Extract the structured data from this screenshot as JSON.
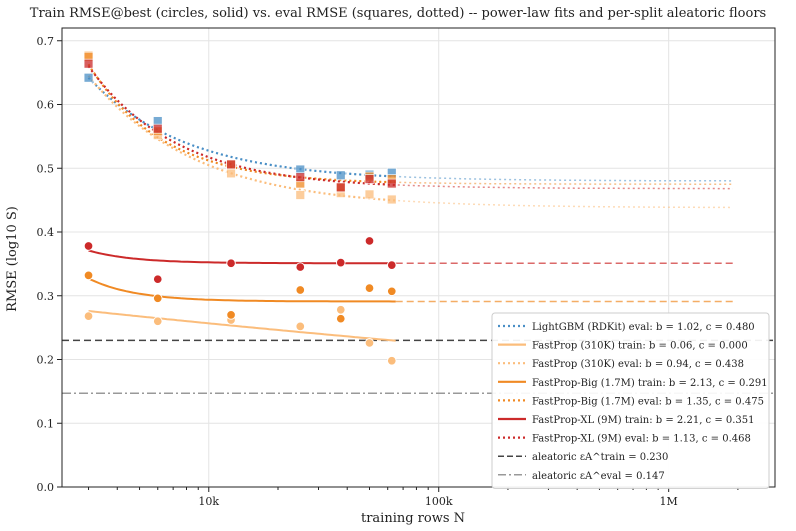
{
  "chart_data": {
    "type": "scatter",
    "title": "Train RMSE@best (circles, solid) vs. eval RMSE (squares, dotted)  --  power-law fits and per-split aleatoric floors",
    "xlabel": "training rows  N",
    "ylabel": "RMSE  (log10 S)",
    "xscale": "log",
    "xlim": [
      2300,
      2900000
    ],
    "ylim": [
      0,
      0.72
    ],
    "x_ticks": [
      10000,
      100000,
      1000000
    ],
    "x_tick_labels": [
      "10k",
      "100k",
      "1M"
    ],
    "y_ticks": [
      0.0,
      0.1,
      0.2,
      0.3,
      0.4,
      0.5,
      0.6,
      0.7
    ],
    "y_tick_labels": [
      "0.0",
      "0.1",
      "0.2",
      "0.3",
      "0.4",
      "0.5",
      "0.6",
      "0.7"
    ],
    "grid": true,
    "legend_position": "lower-right",
    "colors": {
      "lightgbm": "#4a8fc6",
      "fastprop": "#fbbd7c",
      "fastprop_big": "#f08a24",
      "fastprop_xl": "#cc2a2a",
      "aleatoric_train": "#444444",
      "aleatoric_eval": "#999999"
    },
    "series": [
      {
        "name": "LightGBM (RDKit)  eval: b = 1.02, c = 0.480",
        "kind": "eval",
        "color_key": "lightgbm",
        "marker": "square",
        "line": "dotted",
        "x": [
          3000,
          6000,
          25000,
          37500,
          50000,
          62500
        ],
        "y": [
          0.642,
          0.574,
          0.498,
          0.489,
          0.49,
          0.493
        ],
        "fit": {
          "c": 0.48,
          "b": 1.02,
          "ref_n": 3000,
          "ref_y": 0.642,
          "x_end": 1900000
        }
      },
      {
        "name": "FastProp (310K)  train: b = 0.06, c = 0.000",
        "kind": "train",
        "color_key": "fastprop",
        "marker": "circle",
        "line": "solid",
        "x": [
          3000,
          6000,
          12500,
          25000,
          37500,
          50000,
          62500
        ],
        "y": [
          0.268,
          0.26,
          0.262,
          0.252,
          0.278,
          0.226,
          0.198
        ],
        "fit": {
          "c": 0.0,
          "b": 0.06,
          "ref_n": 3000,
          "ref_y": 0.276,
          "x_solid_end": 65000,
          "x_end": 65000
        }
      },
      {
        "name": "FastProp (310K)  eval: b = 0.94, c = 0.438",
        "kind": "eval",
        "color_key": "fastprop",
        "marker": "square",
        "line": "dotted",
        "x": [
          3000,
          6000,
          12500,
          25000,
          37500,
          50000,
          62500
        ],
        "y": [
          0.677,
          0.552,
          0.492,
          0.458,
          0.461,
          0.459,
          0.451
        ],
        "fit": {
          "c": 0.438,
          "b": 0.94,
          "ref_n": 3000,
          "ref_y": 0.645,
          "x_end": 1900000
        }
      },
      {
        "name": "FastProp-Big (1.7M)  train: b = 2.13, c = 0.291",
        "kind": "train",
        "color_key": "fastprop_big",
        "marker": "circle",
        "line": "solid",
        "x": [
          3000,
          6000,
          12500,
          25000,
          37500,
          50000,
          62500
        ],
        "y": [
          0.332,
          0.296,
          0.27,
          0.309,
          0.264,
          0.312,
          0.307
        ],
        "fit": {
          "c": 0.291,
          "b": 2.13,
          "ref_n": 3000,
          "ref_y": 0.327,
          "x_solid_end": 65000,
          "x_end": 1900000
        }
      },
      {
        "name": "FastProp-Big (1.7M)  eval: b = 1.35, c = 0.475",
        "kind": "eval",
        "color_key": "fastprop_big",
        "marker": "square",
        "line": "dotted",
        "x": [
          3000,
          6000,
          12500,
          25000,
          37500,
          50000,
          62500
        ],
        "y": [
          0.675,
          0.558,
          0.506,
          0.476,
          0.47,
          0.487,
          0.483
        ],
        "fit": {
          "c": 0.475,
          "b": 1.35,
          "ref_n": 3000,
          "ref_y": 0.663,
          "x_end": 1900000
        }
      },
      {
        "name": "FastProp-XL (9M)  train: b = 2.21, c = 0.351",
        "kind": "train",
        "color_key": "fastprop_xl",
        "marker": "circle",
        "line": "solid",
        "x": [
          3000,
          6000,
          12500,
          25000,
          37500,
          50000,
          62500
        ],
        "y": [
          0.378,
          0.326,
          0.351,
          0.345,
          0.352,
          0.386,
          0.348
        ],
        "fit": {
          "c": 0.351,
          "b": 2.21,
          "ref_n": 3000,
          "ref_y": 0.371,
          "x_solid_end": 65000,
          "x_end": 1900000
        }
      },
      {
        "name": "FastProp-XL (9M)  eval: b = 1.13, c = 0.468",
        "kind": "eval",
        "color_key": "fastprop_xl",
        "marker": "square",
        "line": "dotted",
        "x": [
          3000,
          6000,
          12500,
          25000,
          37500,
          50000,
          62500
        ],
        "y": [
          0.664,
          0.562,
          0.506,
          0.486,
          0.47,
          0.483,
          0.476
        ],
        "fit": {
          "c": 0.468,
          "b": 1.13,
          "ref_n": 3000,
          "ref_y": 0.66,
          "x_end": 1900000
        }
      }
    ],
    "reference_lines": [
      {
        "name": "aleatoric  εA^train = 0.230",
        "y": 0.23,
        "color_key": "aleatoric_train",
        "style": "dashed"
      },
      {
        "name": "aleatoric  εA^eval = 0.147",
        "y": 0.147,
        "color_key": "aleatoric_eval",
        "style": "dashdot"
      }
    ]
  }
}
